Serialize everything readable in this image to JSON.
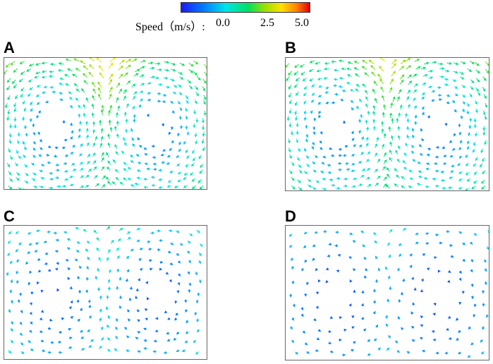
{
  "legend": {
    "speed_label": "Speed（m/s）:",
    "tick_0": "0.0",
    "tick_1": "2.5",
    "tick_2": "5.0"
  },
  "colormap": [
    "#1a1aff",
    "#0080ff",
    "#00e6e6",
    "#00e060",
    "#9ae000",
    "#ffe000",
    "#ff8000",
    "#e60000"
  ],
  "speed_range": [
    0.0,
    5.0
  ],
  "panels": [
    {
      "letter": "A",
      "top_speed": 3.2,
      "mean_speed": 1.5,
      "arrow_density": "dense"
    },
    {
      "letter": "B",
      "top_speed": 2.9,
      "mean_speed": 1.5,
      "arrow_density": "dense"
    },
    {
      "letter": "C",
      "top_speed": 1.6,
      "mean_speed": 1.1,
      "arrow_density": "medium"
    },
    {
      "letter": "D",
      "top_speed": 1.3,
      "mean_speed": 0.9,
      "arrow_density": "sparse"
    }
  ]
}
